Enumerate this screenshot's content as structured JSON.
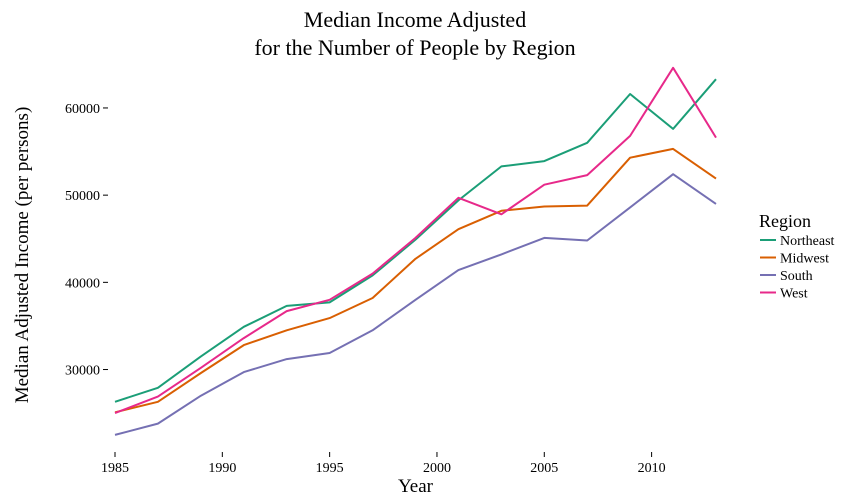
{
  "chart_data": {
    "type": "line",
    "title_line1": "Median Income Adjusted",
    "title_line2": "for the Number of People by Region",
    "xlabel": "Year",
    "ylabel": "Median Adjusted Income (per persons)",
    "x": [
      1985,
      1987,
      1989,
      1991,
      1993,
      1995,
      1997,
      1999,
      2001,
      2003,
      2005,
      2007,
      2009,
      2011,
      2013
    ],
    "xlim": [
      1985,
      2013
    ],
    "ylim": [
      21000,
      65500
    ],
    "x_ticks": [
      1985,
      1990,
      1995,
      2000,
      2005,
      2010
    ],
    "y_ticks": [
      30000,
      40000,
      50000,
      60000
    ],
    "grid": false,
    "legend": {
      "title": "Region",
      "placement": "right"
    },
    "series": [
      {
        "name": "Northeast",
        "color": "#1b9e77",
        "values": [
          26300,
          27900,
          31500,
          34900,
          37300,
          37700,
          40800,
          44900,
          49400,
          53300,
          53900,
          56000,
          61600,
          57600,
          63300
        ]
      },
      {
        "name": "Midwest",
        "color": "#d95f02",
        "values": [
          25100,
          26300,
          29600,
          32800,
          34500,
          35900,
          38200,
          42700,
          46100,
          48200,
          48700,
          48800,
          54300,
          55300,
          51900
        ]
      },
      {
        "name": "South",
        "color": "#7570b3",
        "values": [
          22500,
          23800,
          27000,
          29700,
          31200,
          31900,
          34500,
          38000,
          41400,
          43200,
          45100,
          44800,
          48600,
          52400,
          49000
        ]
      },
      {
        "name": "West",
        "color": "#e7298a",
        "values": [
          25000,
          26900,
          30200,
          33600,
          36700,
          38000,
          41000,
          45100,
          49700,
          47800,
          51200,
          52300,
          56800,
          64600,
          56600
        ]
      }
    ]
  }
}
